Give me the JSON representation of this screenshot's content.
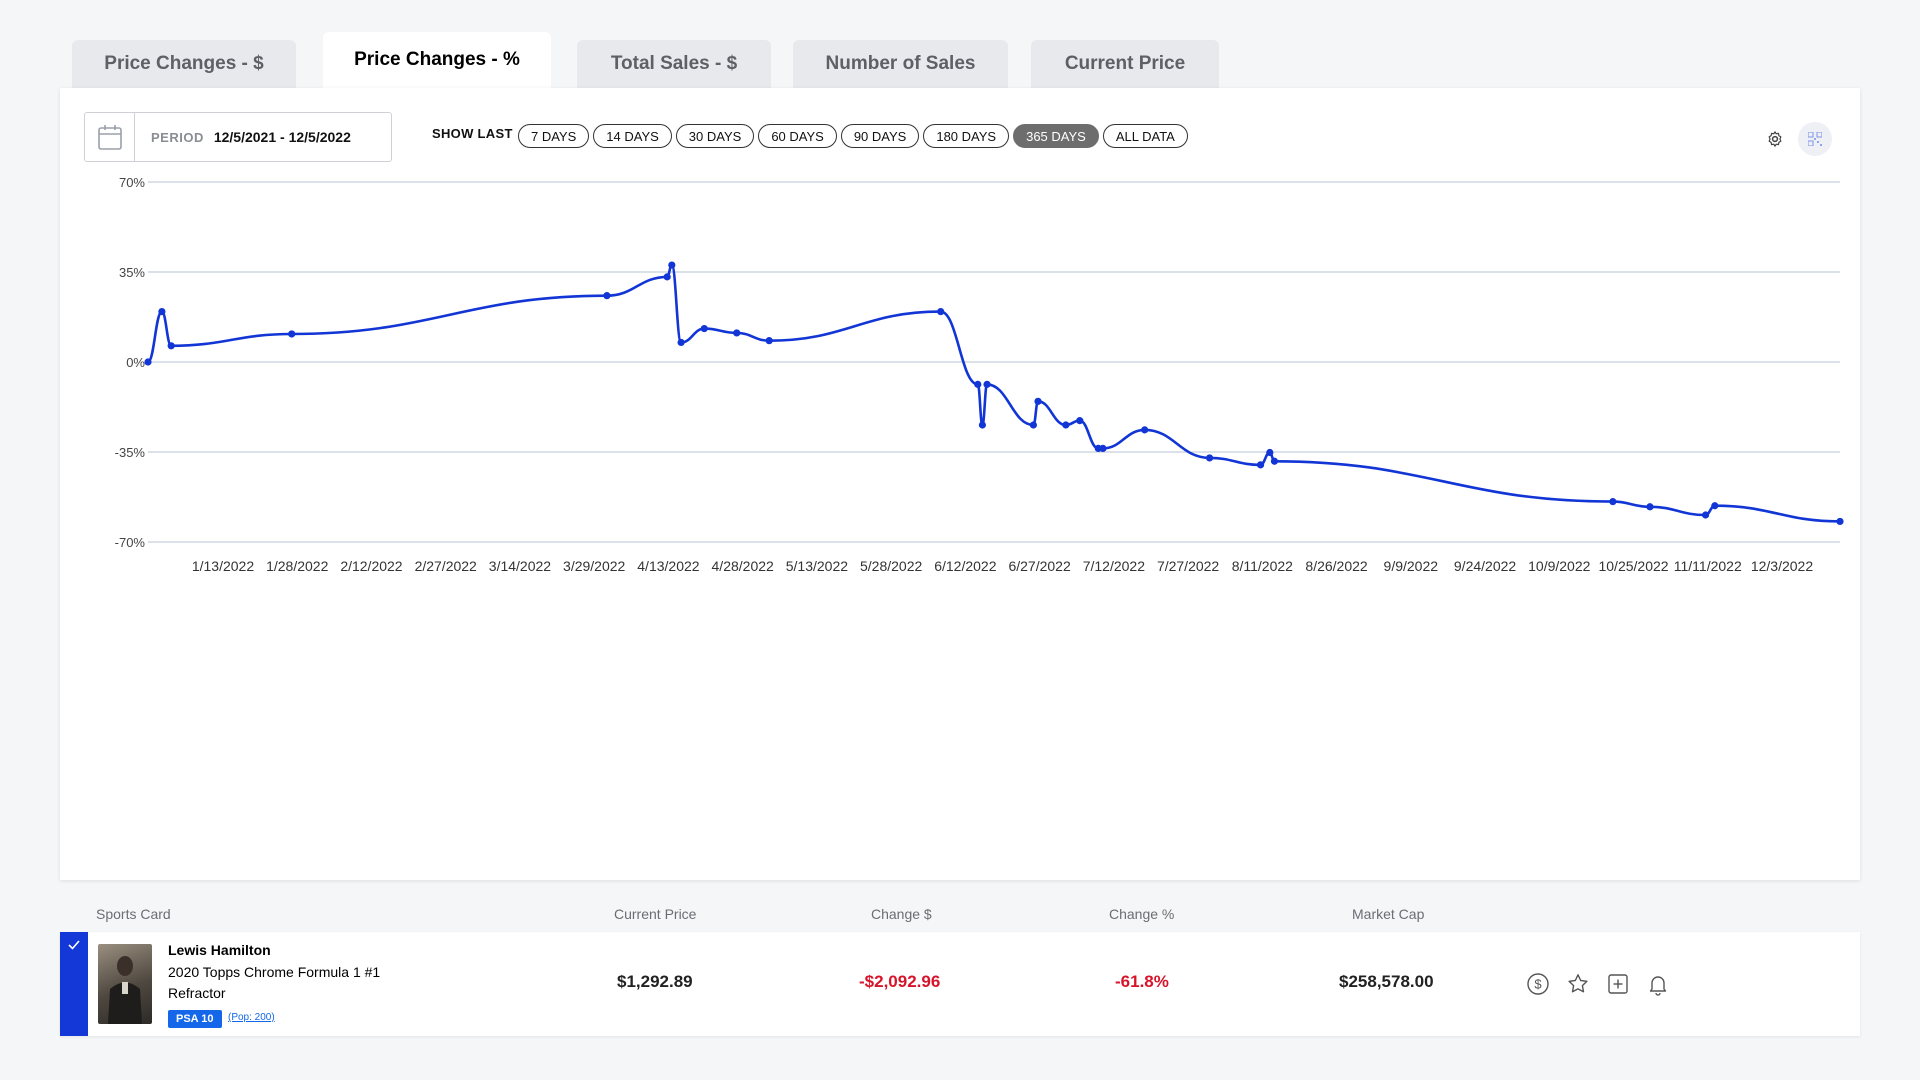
{
  "tabs": [
    {
      "label": "Price Changes - $",
      "active": false
    },
    {
      "label": "Price Changes - %",
      "active": true
    },
    {
      "label": "Total Sales - $",
      "active": false
    },
    {
      "label": "Number of Sales",
      "active": false
    },
    {
      "label": "Current Price",
      "active": false
    }
  ],
  "toolbar": {
    "period_label": "PERIOD",
    "period_range": "12/5/2021 - 12/5/2022",
    "show_last_label": "SHOW LAST",
    "ranges": [
      "7 DAYS",
      "14 DAYS",
      "30 DAYS",
      "60 DAYS",
      "90 DAYS",
      "180 DAYS",
      "365 DAYS",
      "ALL DATA"
    ],
    "active_range": "365 DAYS"
  },
  "icons": {
    "calendar": "calendar-icon",
    "settings": "gear-icon",
    "qr": "qr-code-icon",
    "price": "dollar-circle-icon",
    "favorite": "star-icon",
    "add": "plus-square-icon",
    "alert": "bell-icon",
    "check": "check-icon"
  },
  "colors": {
    "line": "#1235d6",
    "negative": "#d8142a",
    "accent": "#1438d8",
    "badge": "#1467e8"
  },
  "chart_data": {
    "type": "line",
    "ylim": [
      -70,
      70
    ],
    "yticks": [
      "70%",
      "35%",
      "0%",
      "-35%",
      "-70%"
    ],
    "ytick_values": [
      70,
      35,
      0,
      -35,
      -70
    ],
    "xtick_labels": [
      "1/13/2022",
      "1/28/2022",
      "2/12/2022",
      "2/27/2022",
      "3/14/2022",
      "3/29/2022",
      "4/13/2022",
      "4/28/2022",
      "5/13/2022",
      "5/28/2022",
      "6/12/2022",
      "6/27/2022",
      "7/12/2022",
      "7/27/2022",
      "8/11/2022",
      "8/26/2022",
      "9/9/2022",
      "9/24/2022",
      "10/9/2022",
      "10/25/2022",
      "11/11/2022",
      "12/3/2022"
    ],
    "grid": true,
    "series": [
      {
        "points": [
          [
            "2021-12-05",
            0
          ],
          [
            "2021-12-08",
            19.6
          ],
          [
            "2021-12-10",
            6.3
          ],
          [
            "2022-01-05",
            10.9
          ],
          [
            "2022-03-14",
            25.8
          ],
          [
            "2022-03-27",
            33.1
          ],
          [
            "2022-03-28",
            37.7
          ],
          [
            "2022-03-30",
            7.6
          ],
          [
            "2022-04-04",
            13.0
          ],
          [
            "2022-04-11",
            11.3
          ],
          [
            "2022-04-18",
            8.3
          ],
          [
            "2022-05-25",
            19.6
          ],
          [
            "2022-06-02",
            -8.7
          ],
          [
            "2022-06-03",
            -24.5
          ],
          [
            "2022-06-04",
            -8.7
          ],
          [
            "2022-06-14",
            -24.5
          ],
          [
            "2022-06-15",
            -15.3
          ],
          [
            "2022-06-21",
            -24.5
          ],
          [
            "2022-06-24",
            -22.8
          ],
          [
            "2022-06-28",
            -33.6
          ],
          [
            "2022-06-29",
            -33.6
          ],
          [
            "2022-07-08",
            -26.4
          ],
          [
            "2022-07-22",
            -37.3
          ],
          [
            "2022-08-02",
            -40.0
          ],
          [
            "2022-08-04",
            -35.2
          ],
          [
            "2022-08-05",
            -38.6
          ],
          [
            "2022-10-17",
            -54.3
          ],
          [
            "2022-10-25",
            -56.3
          ],
          [
            "2022-11-06",
            -59.5
          ],
          [
            "2022-11-08",
            -55.9
          ],
          [
            "2022-12-05",
            -62.0
          ]
        ]
      }
    ]
  },
  "table": {
    "headers": {
      "card": "Sports Card",
      "price": "Current Price",
      "change_usd": "Change $",
      "change_pct": "Change %",
      "market_cap": "Market Cap"
    },
    "row": {
      "name": "Lewis Hamilton",
      "set": "2020 Topps Chrome Formula 1 #1",
      "variant": "Refractor",
      "grade": "PSA 10",
      "pop": "(Pop: 200)",
      "price": "$1,292.89",
      "change_usd": "-$2,092.96",
      "change_pct": "-61.8%",
      "market_cap": "$258,578.00"
    }
  }
}
